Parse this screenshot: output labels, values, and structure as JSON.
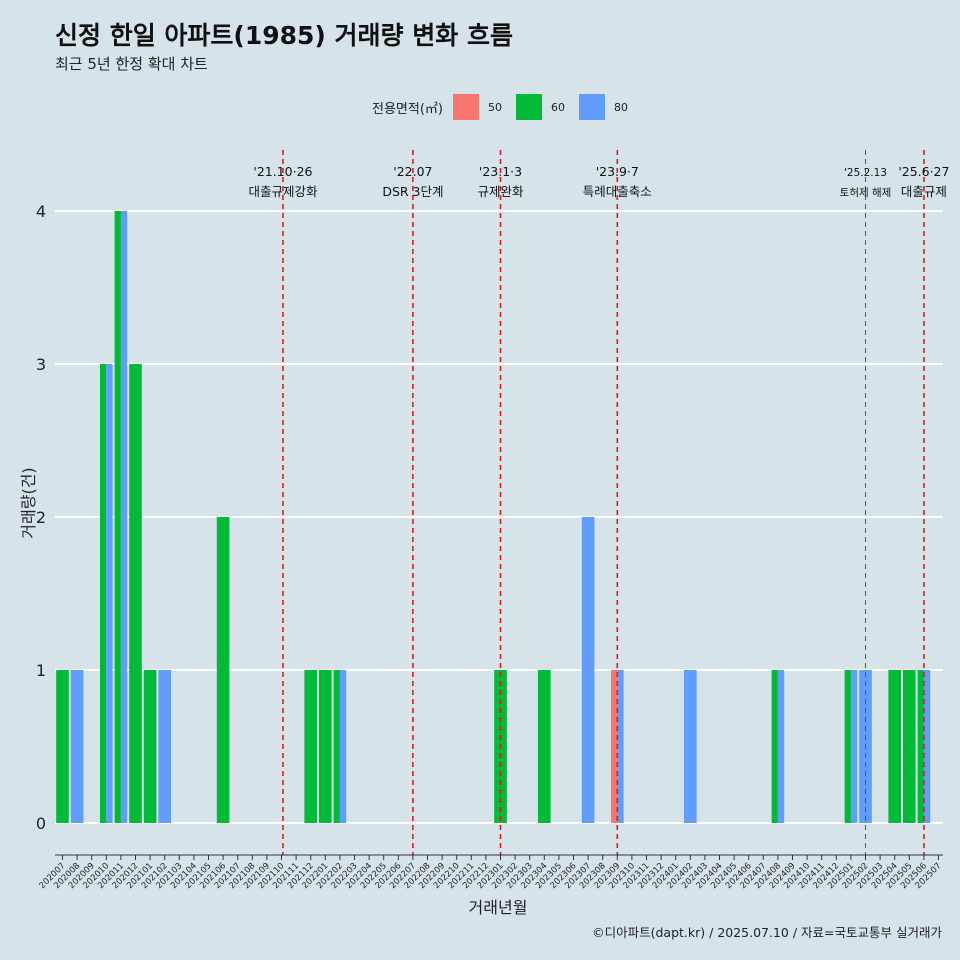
{
  "title": "신정 한일 아파트(1985) 거래량 변화 흐름",
  "subtitle": "최근 5년 한정 확대 차트",
  "legend": {
    "title": "전용면적(㎡)",
    "items": [
      {
        "label": "50",
        "color": "#f8766d"
      },
      {
        "label": "60",
        "color": "#00ba38"
      },
      {
        "label": "80",
        "color": "#619cff"
      }
    ]
  },
  "caption": "©디아파트(dapt.kr) / 2025.07.10 / 자료=국토교통부 실거래가",
  "chart_data": {
    "type": "bar",
    "xlabel": "거래년월",
    "ylabel": "거래량(건)",
    "ylim": [
      0,
      4
    ],
    "y_ticks": [
      0,
      1,
      2,
      3,
      4
    ],
    "grid": true,
    "legend_position": "top",
    "categories": [
      "202007",
      "202008",
      "202009",
      "202010",
      "202011",
      "202012",
      "202101",
      "202102",
      "202103",
      "202104",
      "202105",
      "202106",
      "202107",
      "202108",
      "202109",
      "202110",
      "202111",
      "202112",
      "202201",
      "202202",
      "202203",
      "202204",
      "202205",
      "202206",
      "202207",
      "202208",
      "202209",
      "202210",
      "202211",
      "202212",
      "202301",
      "202302",
      "202303",
      "202304",
      "202305",
      "202306",
      "202307",
      "202308",
      "202309",
      "202310",
      "202311",
      "202312",
      "202401",
      "202402",
      "202403",
      "202404",
      "202405",
      "202406",
      "202407",
      "202408",
      "202409",
      "202410",
      "202411",
      "202412",
      "202501",
      "202502",
      "202503",
      "202504",
      "202505",
      "202506",
      "202507"
    ],
    "series": [
      {
        "name": "50",
        "color": "#f8766d",
        "values": {
          "202309": 1
        }
      },
      {
        "name": "60",
        "color": "#00ba38",
        "values": {
          "202007": 1,
          "202010": 3,
          "202011": 4,
          "202012": 3,
          "202101": 1,
          "202106": 2,
          "202112": 1,
          "202201": 1,
          "202202": 1,
          "202301": 1,
          "202304": 1,
          "202408": 1,
          "202501": 1,
          "202504": 1,
          "202505": 1,
          "202506": 1
        }
      },
      {
        "name": "80",
        "color": "#619cff",
        "values": {
          "202008": 1,
          "202010": 3,
          "202011": 4,
          "202102": 1,
          "202202": 1,
          "202307": 2,
          "202309": 1,
          "202402": 1,
          "202408": 1,
          "202501": 1,
          "202502": 1,
          "202506": 1
        }
      }
    ],
    "annotations": [
      {
        "date": "'21.10·26",
        "text": "대출규제강화",
        "at": "202110",
        "offset": 0.1
      },
      {
        "date": "'22.07",
        "text": "DSR 3단계",
        "at": "202207",
        "offset": 0
      },
      {
        "date": "'23.1·3",
        "text": "규제완화",
        "at": "202301",
        "offset": 0
      },
      {
        "date": "'23.9·7",
        "text": "특례대출축소",
        "at": "202309",
        "offset": 0
      },
      {
        "date": "'25.2.13",
        "text": "토허제 해제",
        "at": "202502",
        "offset": 0,
        "small": true
      },
      {
        "date": "'25.6·27",
        "text": "대출규제",
        "at": "202506",
        "offset": 0
      }
    ]
  }
}
